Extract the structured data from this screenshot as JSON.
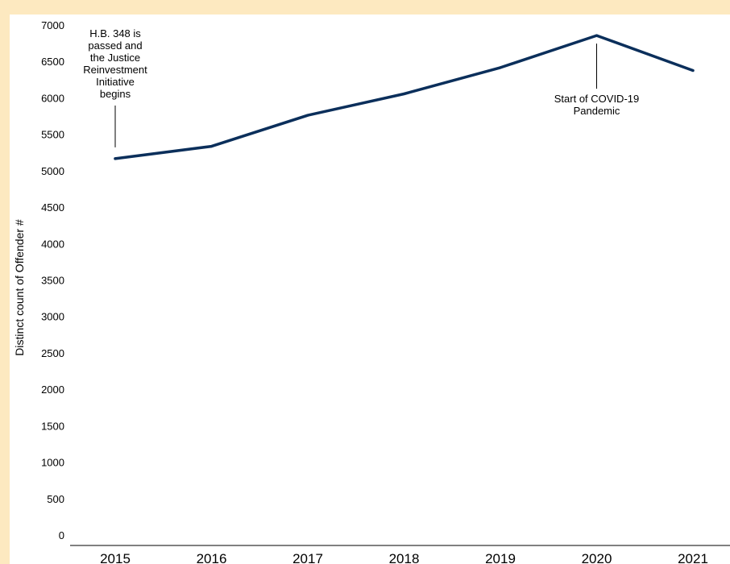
{
  "chart_data": {
    "type": "line",
    "title": "",
    "xlabel": "",
    "ylabel": "Distinct count of Offender #",
    "categories": [
      "2015",
      "2016",
      "2017",
      "2018",
      "2019",
      "2020",
      "2021"
    ],
    "series": [
      {
        "values": [
          5165,
          5335,
          5760,
          6055,
          6415,
          6855,
          6375
        ],
        "color": "#0b2f5b"
      }
    ],
    "ylim": [
      0,
      7000
    ],
    "yticks": [
      "0",
      "500",
      "1000",
      "1500",
      "2000",
      "2500",
      "3000",
      "3500",
      "4000",
      "4500",
      "5000",
      "5500",
      "6000",
      "6500",
      "7000"
    ],
    "grid": false,
    "annotations": [
      {
        "category": "2015",
        "lines": [
          "H.B. 348 is",
          "passed and",
          "the Justice",
          "Reinvestment",
          "Initiative",
          "begins"
        ]
      },
      {
        "category": "2020",
        "lines": [
          "Start of COVID-19",
          "Pandemic"
        ]
      }
    ]
  }
}
